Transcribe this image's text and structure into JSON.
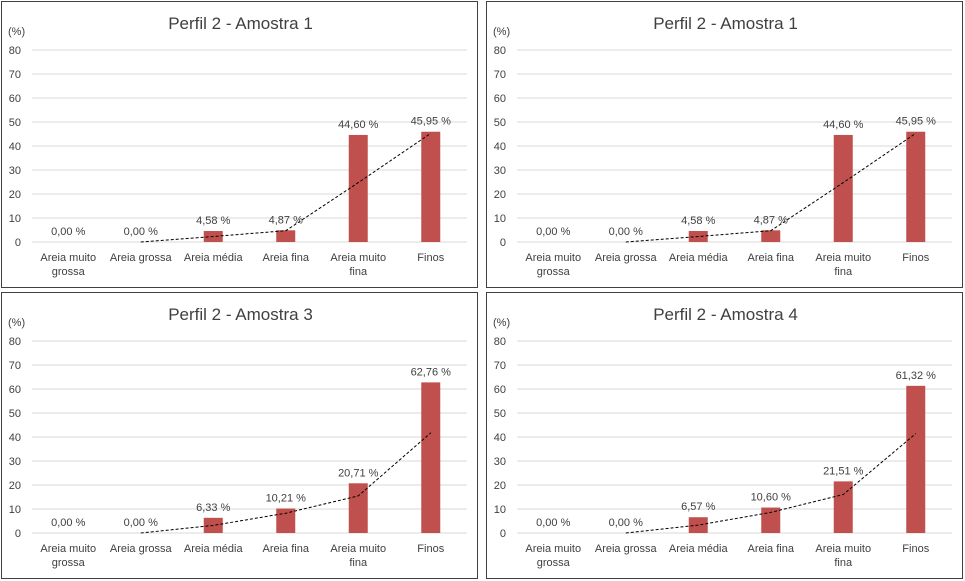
{
  "colors": {
    "bar": "#c0504d",
    "grid": "#d9d9d9",
    "text": "#404040",
    "border": "#404040",
    "trendline": "#000000"
  },
  "chart_data": [
    {
      "type": "bar",
      "title": "Perfil 2 - Amostra 1",
      "unit_label": "(%)",
      "categories": [
        "Areia muito grossa",
        "Areia grossa",
        "Areia média",
        "Areia fina",
        "Areia muito fina",
        "Finos"
      ],
      "category_lines": [
        [
          "Areia muito",
          "grossa"
        ],
        [
          "Areia grossa"
        ],
        [
          "Areia média"
        ],
        [
          "Areia fina"
        ],
        [
          "Areia muito",
          "fina"
        ],
        [
          "Finos"
        ]
      ],
      "values": [
        0.0,
        0.0,
        4.58,
        4.87,
        44.6,
        45.95
      ],
      "data_labels": [
        "0,00 %",
        "0,00 %",
        "4,58 %",
        "4,87 %",
        "44,60 %",
        "45,95 %"
      ],
      "yticks": [
        "0",
        "10",
        "20",
        "30",
        "40",
        "50",
        "60",
        "70",
        "80"
      ],
      "ylim": [
        0,
        80
      ],
      "grid": true,
      "trendline": {
        "style": "dashed",
        "type": "two-period moving average"
      }
    },
    {
      "type": "bar",
      "title": "Perfil 2 - Amostra 1",
      "unit_label": "(%)",
      "categories": [
        "Areia muito grossa",
        "Areia grossa",
        "Areia média",
        "Areia fina",
        "Areia muito fina",
        "Finos"
      ],
      "category_lines": [
        [
          "Areia muito",
          "grossa"
        ],
        [
          "Areia grossa"
        ],
        [
          "Areia média"
        ],
        [
          "Areia fina"
        ],
        [
          "Areia muito",
          "fina"
        ],
        [
          "Finos"
        ]
      ],
      "values": [
        0.0,
        0.0,
        4.58,
        4.87,
        44.6,
        45.95
      ],
      "data_labels": [
        "0,00 %",
        "0,00 %",
        "4,58 %",
        "4,87 %",
        "44,60 %",
        "45,95 %"
      ],
      "yticks": [
        "0",
        "10",
        "20",
        "30",
        "40",
        "50",
        "60",
        "70",
        "80"
      ],
      "ylim": [
        0,
        80
      ],
      "grid": true,
      "trendline": {
        "style": "dashed",
        "type": "two-period moving average"
      }
    },
    {
      "type": "bar",
      "title": "Perfil 2 - Amostra 3",
      "unit_label": "(%)",
      "categories": [
        "Areia muito grossa",
        "Areia grossa",
        "Areia média",
        "Areia fina",
        "Areia muito fina",
        "Finos"
      ],
      "category_lines": [
        [
          "Areia muito",
          "grossa"
        ],
        [
          "Areia grossa"
        ],
        [
          "Areia média"
        ],
        [
          "Areia fina"
        ],
        [
          "Areia muito",
          "fina"
        ],
        [
          "Finos"
        ]
      ],
      "values": [
        0.0,
        0.0,
        6.33,
        10.21,
        20.71,
        62.76
      ],
      "data_labels": [
        "0,00 %",
        "0,00 %",
        "6,33 %",
        "10,21 %",
        "20,71 %",
        "62,76 %"
      ],
      "yticks": [
        "0",
        "10",
        "20",
        "30",
        "40",
        "50",
        "60",
        "70",
        "80"
      ],
      "ylim": [
        0,
        80
      ],
      "grid": true,
      "trendline": {
        "style": "dashed",
        "type": "two-period moving average"
      }
    },
    {
      "type": "bar",
      "title": "Perfil 2 - Amostra 4",
      "unit_label": "(%)",
      "categories": [
        "Areia muito grossa",
        "Areia grossa",
        "Areia média",
        "Areia fina",
        "Areia muito fina",
        "Finos"
      ],
      "category_lines": [
        [
          "Areia muito",
          "grossa"
        ],
        [
          "Areia grossa"
        ],
        [
          "Areia média"
        ],
        [
          "Areia fina"
        ],
        [
          "Areia muito",
          "fina"
        ],
        [
          "Finos"
        ]
      ],
      "values": [
        0.0,
        0.0,
        6.57,
        10.6,
        21.51,
        61.32
      ],
      "data_labels": [
        "0,00 %",
        "0,00 %",
        "6,57 %",
        "10,60 %",
        "21,51 %",
        "61,32 %"
      ],
      "yticks": [
        "0",
        "10",
        "20",
        "30",
        "40",
        "50",
        "60",
        "70",
        "80"
      ],
      "ylim": [
        0,
        80
      ],
      "grid": true,
      "trendline": {
        "style": "dashed",
        "type": "two-period moving average"
      }
    }
  ]
}
